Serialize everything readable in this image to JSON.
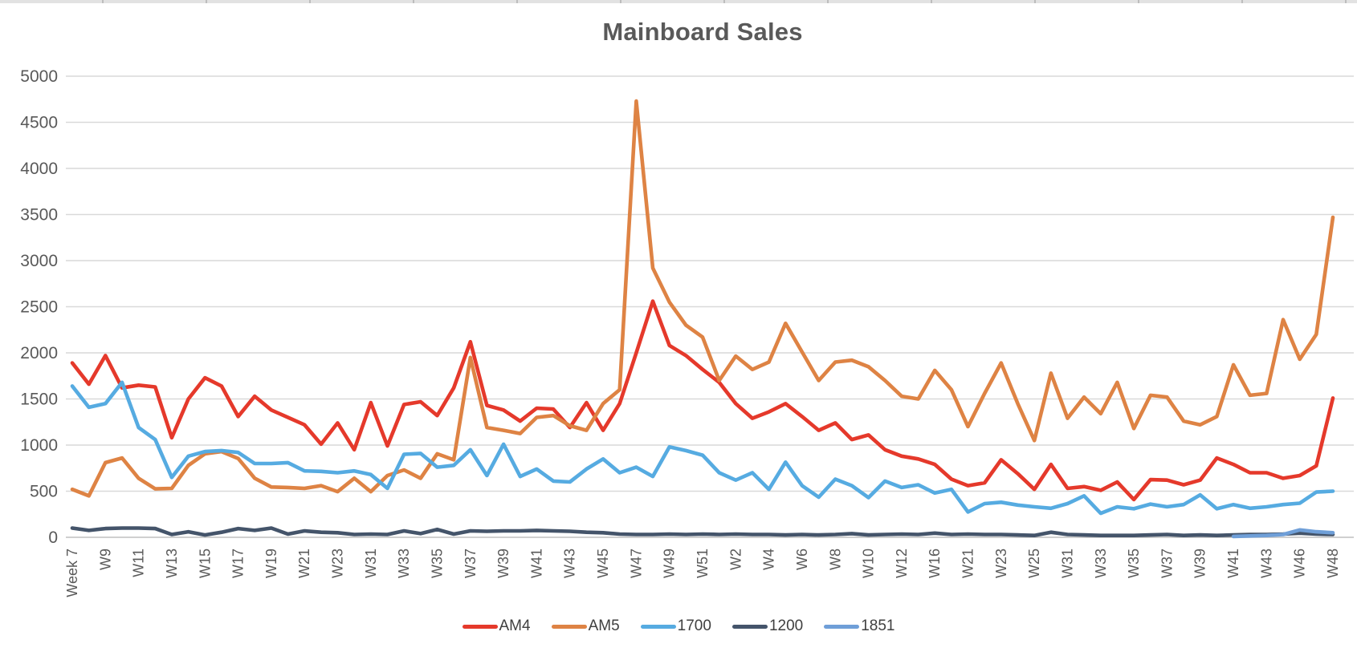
{
  "page": {
    "background": "#ffffff"
  },
  "title": "Mainboard Sales",
  "axis": {
    "label_color": "#595959",
    "gridline_color": "#d9d9d9",
    "axisline_color": "#bfbfbf"
  },
  "legend": {
    "position": "bottom"
  },
  "chart_data": {
    "type": "line",
    "title": "Mainboard Sales",
    "xlabel": "",
    "ylabel": "",
    "ylim": [
      0,
      5000
    ],
    "ytick_step": 500,
    "yticks": [
      0,
      500,
      1000,
      1500,
      2000,
      2500,
      3000,
      3500,
      4000,
      4500,
      5000
    ],
    "grid": true,
    "legend_position": "bottom",
    "x_tick_labels_shown_every": 2,
    "categories": [
      "Week 7",
      "",
      "W9",
      "",
      "W11",
      "",
      "W13",
      "",
      "W15",
      "",
      "W17",
      "",
      "W19",
      "",
      "W21",
      "",
      "W23",
      "",
      "W31",
      "",
      "W33",
      "",
      "W35",
      "",
      "W37",
      "",
      "W39",
      "",
      "W41",
      "",
      "W43",
      "",
      "W45",
      "",
      "W47",
      "",
      "W49",
      "",
      "W51",
      "",
      "W2",
      "",
      "W4",
      "",
      "W6",
      "",
      "W8",
      "",
      "W10",
      "",
      "W12",
      "",
      "W16",
      "",
      "W21",
      "",
      "W23",
      "",
      "W25",
      "",
      "W31",
      "",
      "W33",
      "",
      "W35",
      "",
      "W37",
      "",
      "W39",
      "",
      "W41",
      "",
      "W43",
      "",
      "W46",
      "",
      "W48"
    ],
    "series": [
      {
        "name": "AM4",
        "color": "#e5392b",
        "values": [
          1890,
          1660,
          1970,
          1620,
          1650,
          1630,
          1080,
          1500,
          1730,
          1640,
          1310,
          1530,
          1380,
          1300,
          1220,
          1010,
          1240,
          950,
          1460,
          990,
          1440,
          1470,
          1320,
          1620,
          2120,
          1430,
          1380,
          1260,
          1400,
          1390,
          1190,
          1460,
          1160,
          1450,
          2000,
          2560,
          2080,
          1970,
          1820,
          1680,
          1450,
          1290,
          1360,
          1450,
          1310,
          1160,
          1240,
          1060,
          1110,
          950,
          880,
          850,
          790,
          630,
          560,
          590,
          840,
          690,
          520,
          790,
          530,
          550,
          510,
          600,
          410,
          625,
          620,
          570,
          620,
          860,
          790,
          700,
          700,
          640,
          670,
          775,
          1510
        ]
      },
      {
        "name": "AM5",
        "color": "#de8344",
        "values": [
          520,
          450,
          810,
          860,
          640,
          525,
          530,
          780,
          905,
          930,
          855,
          640,
          545,
          540,
          530,
          560,
          495,
          640,
          495,
          670,
          730,
          640,
          905,
          840,
          1950,
          1190,
          1160,
          1125,
          1300,
          1320,
          1210,
          1160,
          1450,
          1600,
          4730,
          2920,
          2550,
          2300,
          2170,
          1700,
          1965,
          1820,
          1900,
          2320,
          2010,
          1700,
          1900,
          1920,
          1850,
          1700,
          1530,
          1500,
          1810,
          1600,
          1200,
          1560,
          1890,
          1450,
          1050,
          1780,
          1290,
          1520,
          1340,
          1680,
          1180,
          1540,
          1520,
          1260,
          1220,
          1310,
          1870,
          1540,
          1560,
          2360,
          1930,
          2200,
          3470
        ]
      },
      {
        "name": "1700",
        "color": "#56abe1",
        "values": [
          1640,
          1410,
          1450,
          1680,
          1190,
          1060,
          650,
          880,
          930,
          940,
          920,
          800,
          800,
          810,
          720,
          715,
          700,
          720,
          680,
          530,
          900,
          910,
          760,
          780,
          950,
          670,
          1010,
          660,
          740,
          610,
          600,
          740,
          850,
          700,
          760,
          660,
          980,
          940,
          890,
          700,
          620,
          700,
          520,
          815,
          560,
          435,
          630,
          560,
          430,
          610,
          540,
          570,
          480,
          520,
          275,
          365,
          380,
          350,
          330,
          315,
          365,
          450,
          260,
          330,
          310,
          360,
          330,
          355,
          460,
          310,
          355,
          315,
          330,
          355,
          370,
          490,
          500
        ]
      },
      {
        "name": "1200",
        "color": "#44546a",
        "values": [
          100,
          75,
          95,
          100,
          100,
          95,
          30,
          60,
          25,
          55,
          95,
          75,
          100,
          35,
          70,
          55,
          50,
          30,
          35,
          30,
          70,
          40,
          85,
          35,
          70,
          65,
          70,
          70,
          75,
          70,
          65,
          55,
          50,
          35,
          30,
          30,
          35,
          30,
          35,
          30,
          35,
          30,
          30,
          25,
          30,
          25,
          30,
          40,
          25,
          30,
          35,
          30,
          45,
          30,
          35,
          30,
          30,
          25,
          20,
          55,
          30,
          25,
          20,
          20,
          20,
          25,
          30,
          20,
          25,
          20,
          25,
          30,
          30,
          35,
          45,
          35,
          30
        ]
      },
      {
        "name": "1851",
        "color": "#6f9fd8",
        "values": [
          null,
          null,
          null,
          null,
          null,
          null,
          null,
          null,
          null,
          null,
          null,
          null,
          null,
          null,
          null,
          null,
          null,
          null,
          null,
          null,
          null,
          null,
          null,
          null,
          null,
          null,
          null,
          null,
          null,
          null,
          null,
          null,
          null,
          null,
          null,
          null,
          null,
          null,
          null,
          null,
          null,
          null,
          null,
          null,
          null,
          null,
          null,
          null,
          null,
          null,
          null,
          null,
          null,
          null,
          null,
          null,
          null,
          null,
          null,
          null,
          null,
          null,
          null,
          null,
          null,
          null,
          null,
          null,
          null,
          null,
          10,
          15,
          20,
          30,
          80,
          60,
          50
        ]
      }
    ]
  }
}
